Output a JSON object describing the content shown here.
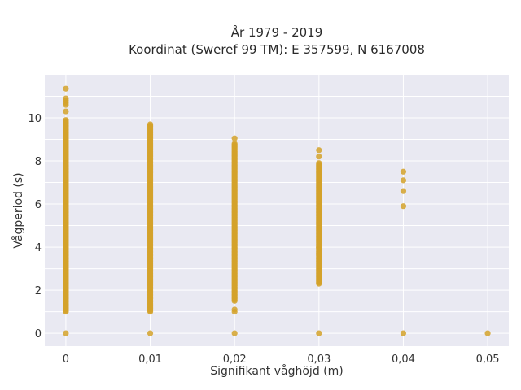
{
  "chart_data": {
    "type": "scatter",
    "title": "År 1979 - 2019",
    "subtitle": "Koordinat (Sweref 99 TM): E 357599, N 6167008",
    "xlabel": "Signifikant våghöjd (m)",
    "ylabel": "Vågperiod (s)",
    "xlim": [
      -0.0025,
      0.0525
    ],
    "ylim": [
      -0.6,
      12.0
    ],
    "x_ticks": [
      0,
      0.01,
      0.02,
      0.03,
      0.04,
      0.05
    ],
    "x_tick_labels": [
      "0",
      "0,01",
      "0,02",
      "0,03",
      "0,04",
      "0,05"
    ],
    "y_ticks": [
      0,
      2,
      4,
      6,
      8,
      10
    ],
    "y_tick_labels": [
      "0",
      "2",
      "4",
      "6",
      "8",
      "10"
    ],
    "grid": true,
    "background_color": "#e9e9f2",
    "point_color": "#d4a22a",
    "series": [
      {
        "columns": [
          {
            "x": 0,
            "min": 1.0,
            "max": 9.9,
            "extra": [
              0,
              10.3,
              10.6,
              10.7,
              10.8,
              10.9,
              11.35
            ]
          },
          {
            "x": 0.01,
            "min": 1.0,
            "max": 9.7,
            "extra": [
              0
            ]
          },
          {
            "x": 0.02,
            "min": 1.5,
            "max": 8.8,
            "extra": [
              0,
              1.0,
              1.1,
              9.05
            ]
          },
          {
            "x": 0.03,
            "min": 2.3,
            "max": 7.9,
            "extra": [
              0,
              3.7,
              4.0,
              8.2,
              8.5
            ]
          },
          {
            "x": 0.04,
            "min": null,
            "max": null,
            "extra": [
              0,
              5.9,
              6.6,
              7.1,
              7.5
            ]
          },
          {
            "x": 0.05,
            "min": null,
            "max": null,
            "extra": [
              0
            ]
          }
        ]
      }
    ]
  }
}
